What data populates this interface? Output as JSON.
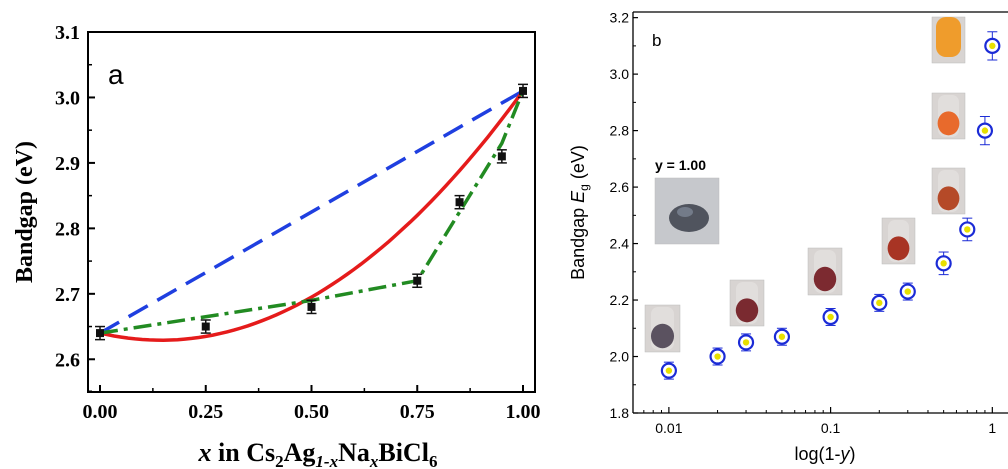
{
  "chart_data": [
    {
      "type": "line",
      "panel_label": "a",
      "xlabel": {
        "parts": [
          "x",
          " in Cs",
          "2",
          "Ag",
          "1-x",
          "Na",
          "x",
          "BiCl",
          "6"
        ]
      },
      "ylabel": "Bandgap (eV)",
      "xlim": [
        0.0,
        1.0
      ],
      "ylim": [
        2.55,
        3.1
      ],
      "x_ticks": [
        "0.00",
        "0.25",
        "0.50",
        "0.75",
        "1.00"
      ],
      "y_ticks": [
        "2.6",
        "2.7",
        "2.8",
        "2.9",
        "3.0",
        "3.1"
      ],
      "series": [
        {
          "style": "markers-with-errorbars",
          "color": "#111111",
          "x": [
            0.0,
            0.25,
            0.5,
            0.75,
            0.85,
            0.95,
            1.0
          ],
          "y": [
            2.64,
            2.65,
            2.68,
            2.72,
            2.84,
            2.91,
            3.01
          ],
          "err": [
            0.01,
            0.01,
            0.01,
            0.01,
            0.01,
            0.01,
            0.01
          ]
        },
        {
          "style": "dashed",
          "color": "#1f3fe0",
          "x": [
            0.0,
            1.0
          ],
          "y": [
            2.64,
            3.01
          ]
        },
        {
          "style": "solid-curve",
          "color": "#e51b1b",
          "x": [
            0.0,
            0.17,
            0.5,
            0.75,
            1.0
          ],
          "y": [
            2.64,
            2.627,
            2.688,
            2.81,
            3.01
          ]
        },
        {
          "style": "dash-dot",
          "color": "#228b22",
          "x": [
            0.0,
            0.5,
            0.75,
            0.95,
            1.0
          ],
          "y": [
            2.64,
            2.69,
            2.72,
            2.93,
            3.01
          ]
        }
      ]
    },
    {
      "type": "scatter",
      "panel_label": "b",
      "xscale": "log",
      "xlabel": {
        "parts": [
          "log(1-",
          "y",
          ")"
        ]
      },
      "ylabel": {
        "parts": [
          "Bandgap ",
          "E",
          "g",
          " (eV)"
        ]
      },
      "xlim": [
        0.006,
        1.25
      ],
      "ylim": [
        1.8,
        3.22
      ],
      "x_ticks": [
        "0.01",
        "0.1",
        "1"
      ],
      "y_ticks": [
        "1.8",
        "2.0",
        "2.2",
        "2.4",
        "2.6",
        "2.8",
        "3.0",
        "3.2"
      ],
      "annotation": "y = 1.00",
      "marker_colors": {
        "ring": "#1b2bd6",
        "center": "#e8e000"
      },
      "series": [
        {
          "x": [
            0.01,
            0.02,
            0.03,
            0.05,
            0.1,
            0.2,
            0.3,
            0.5,
            0.7,
            0.9,
            1.0
          ],
          "y": [
            1.95,
            2.0,
            2.05,
            2.07,
            2.14,
            2.19,
            2.23,
            2.33,
            2.45,
            2.8,
            3.1
          ],
          "err": [
            0.03,
            0.03,
            0.03,
            0.03,
            0.03,
            0.03,
            0.03,
            0.04,
            0.04,
            0.05,
            0.05
          ]
        }
      ],
      "photo_colors": [
        "#5b5260",
        "#7a2a30",
        "#7c2a30",
        "#a83424",
        "#b54a28",
        "#e86a2c",
        "#ef9c2c",
        "#eeeae6",
        "#50545e"
      ]
    }
  ]
}
